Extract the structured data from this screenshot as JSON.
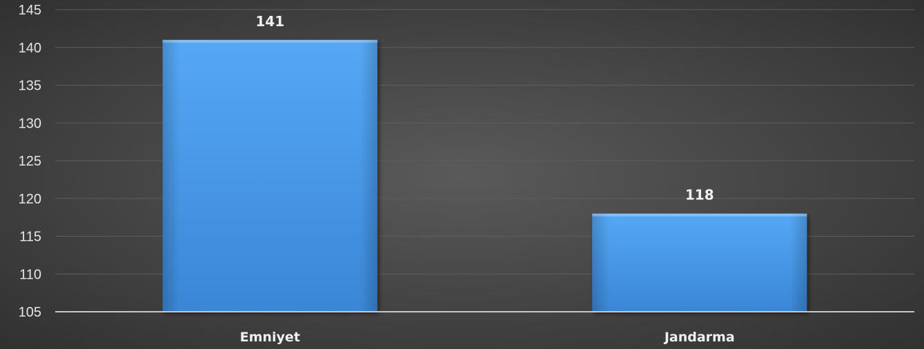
{
  "chart_data": {
    "type": "bar",
    "categories": [
      "Emniyet",
      "Jandarma"
    ],
    "values": [
      141,
      118
    ],
    "data_labels": [
      "141",
      "118"
    ],
    "title": "",
    "xlabel": "",
    "ylabel": "",
    "ylim": [
      105,
      145
    ],
    "yticks": [
      105,
      110,
      115,
      120,
      125,
      130,
      135,
      140,
      145
    ],
    "grid": true,
    "legend": "none",
    "colors": {
      "bar_top": "#55a8f5",
      "bar_bottom": "#3a86d6",
      "background_center": "#5a5a5a",
      "background_edge": "#2e2e2e"
    }
  }
}
